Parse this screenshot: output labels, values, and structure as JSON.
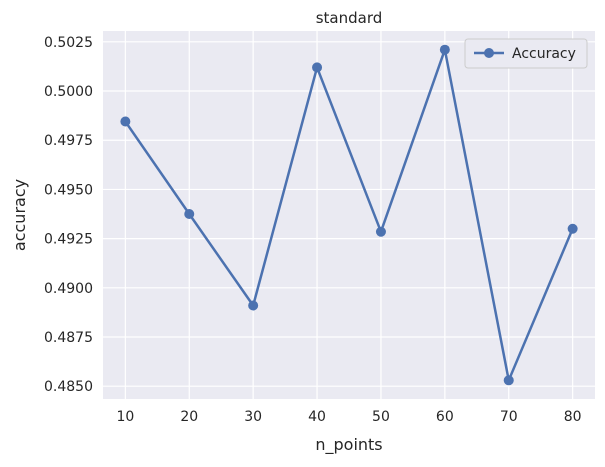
{
  "chart_data": {
    "type": "line",
    "title": "standard",
    "xlabel": "n_points",
    "ylabel": "accuracy",
    "x": [
      10,
      20,
      30,
      40,
      50,
      60,
      70,
      80
    ],
    "xticks": [
      "10",
      "20",
      "30",
      "40",
      "50",
      "60",
      "70",
      "80"
    ],
    "xlim": [
      6.5,
      83.5
    ],
    "ylim": [
      0.48435,
      0.50305
    ],
    "yticks": [
      "0.4850",
      "0.4875",
      "0.4900",
      "0.4925",
      "0.4950",
      "0.4975",
      "0.5000",
      "0.5025"
    ],
    "series": [
      {
        "name": "Accuracy",
        "values": [
          0.49845,
          0.49375,
          0.4891,
          0.5012,
          0.49285,
          0.5021,
          0.4853,
          0.493
        ],
        "color": "#4c72b0"
      }
    ],
    "grid": true,
    "legend": "top-right",
    "colors": {
      "background": "#eaeaf2",
      "grid": "#ffffff",
      "text": "#262626"
    }
  }
}
